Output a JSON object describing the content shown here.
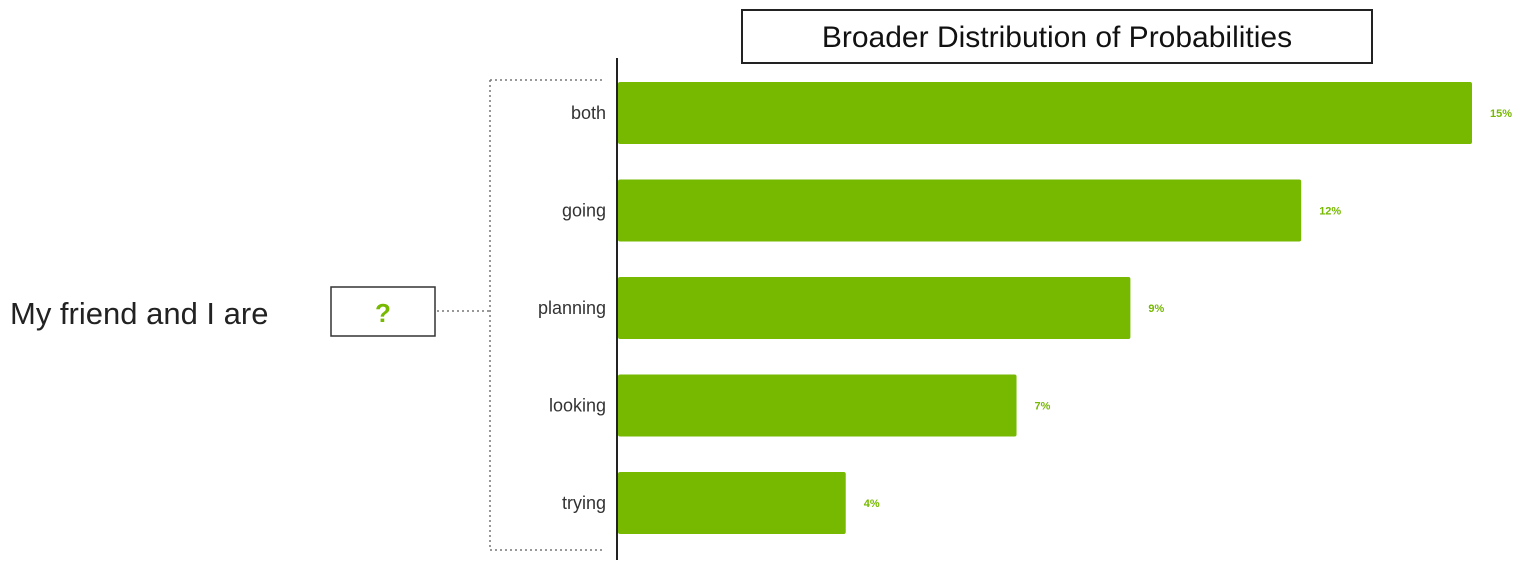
{
  "prompt": {
    "sentence": "My friend and I are",
    "blank": "?"
  },
  "colors": {
    "bar": "#76b900",
    "accent_text": "#76b900",
    "axis": "#222222",
    "bracket": "#777777"
  },
  "chart_data": {
    "type": "bar",
    "orientation": "horizontal",
    "title": "Broader Distribution of Probabilities",
    "categories": [
      "both",
      "going",
      "planning",
      "looking",
      "trying"
    ],
    "values": [
      15,
      12,
      9,
      7,
      4
    ],
    "value_labels": [
      "15%",
      "12%",
      "9%",
      "7%",
      "4%"
    ],
    "unit": "%",
    "xlim": [
      0,
      15
    ],
    "grid": false,
    "legend": "none"
  }
}
